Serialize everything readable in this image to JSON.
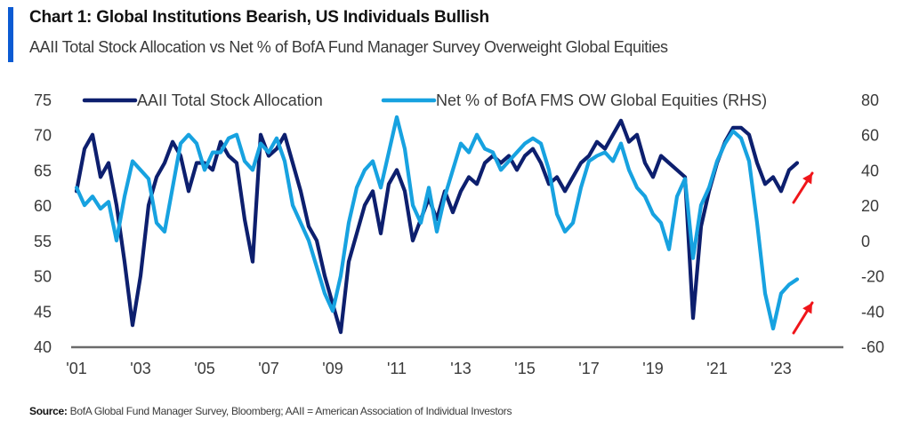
{
  "header": {
    "title": "Chart 1: Global Institutions Bearish, US Individuals Bullish",
    "subtitle": "AAII Total Stock Allocation vs Net % of BofA Fund Manager Survey Overweight Global Equities"
  },
  "footer": {
    "source_label": "Source:",
    "source_text": "BofA Global Fund Manager Survey, Bloomberg; AAII = American Association of Individual Investors"
  },
  "colors": {
    "accent": "#0b5bd3",
    "aaii": "#0d1f6e",
    "fms": "#17a2e0",
    "arrow": "#f0151a",
    "axis": "#6b6b6b"
  },
  "chart_data": {
    "type": "line",
    "title": "Chart 1: Global Institutions Bearish, US Individuals Bullish",
    "subtitle": "AAII Total Stock Allocation vs Net % of BofA Fund Manager Survey Overweight Global Equities",
    "xlabel": "",
    "ylabel": "",
    "x_ticks": [
      "'01",
      "'03",
      "'05",
      "'07",
      "'09",
      "'11",
      "'13",
      "'15",
      "'17",
      "'19",
      "'21",
      "'23"
    ],
    "x_tick_years": [
      2001,
      2003,
      2005,
      2007,
      2009,
      2011,
      2013,
      2015,
      2017,
      2019,
      2021,
      2023
    ],
    "xlim": [
      2000.95,
      2024.9
    ],
    "ylim_left": [
      40,
      75
    ],
    "y_ticks_left": [
      "75",
      "70",
      "65",
      "60",
      "55",
      "50",
      "45",
      "40"
    ],
    "y_tick_values_left": [
      75,
      70,
      65,
      60,
      55,
      50,
      45,
      40
    ],
    "ylim_right": [
      -60,
      80
    ],
    "y_ticks_right": [
      "80",
      "60",
      "40",
      "20",
      "0",
      "-20",
      "-40",
      "-60"
    ],
    "y_tick_values_right": [
      80,
      60,
      40,
      20,
      0,
      -20,
      -40,
      -60
    ],
    "grid": false,
    "legend_position": "top",
    "x": [
      2001.0,
      2001.25,
      2001.5,
      2001.75,
      2002.0,
      2002.25,
      2002.5,
      2002.75,
      2003.0,
      2003.25,
      2003.5,
      2003.75,
      2004.0,
      2004.25,
      2004.5,
      2004.75,
      2005.0,
      2005.25,
      2005.5,
      2005.75,
      2006.0,
      2006.25,
      2006.5,
      2006.75,
      2007.0,
      2007.25,
      2007.5,
      2007.75,
      2008.0,
      2008.25,
      2008.5,
      2008.75,
      2009.0,
      2009.25,
      2009.5,
      2009.75,
      2010.0,
      2010.25,
      2010.5,
      2010.75,
      2011.0,
      2011.25,
      2011.5,
      2011.75,
      2012.0,
      2012.25,
      2012.5,
      2012.75,
      2013.0,
      2013.25,
      2013.5,
      2013.75,
      2014.0,
      2014.25,
      2014.5,
      2014.75,
      2015.0,
      2015.25,
      2015.5,
      2015.75,
      2016.0,
      2016.25,
      2016.5,
      2016.75,
      2017.0,
      2017.25,
      2017.5,
      2017.75,
      2018.0,
      2018.25,
      2018.5,
      2018.75,
      2019.0,
      2019.25,
      2019.5,
      2019.75,
      2020.0,
      2020.25,
      2020.5,
      2020.75,
      2021.0,
      2021.25,
      2021.5,
      2021.75,
      2022.0,
      2022.25,
      2022.5,
      2022.75,
      2023.0,
      2023.25,
      2023.5
    ],
    "series": [
      {
        "name": "AAII Total Stock Allocation",
        "axis": "left",
        "values": [
          62,
          68,
          70,
          64,
          66,
          60,
          52,
          43,
          50,
          60,
          64,
          66,
          69,
          67,
          62,
          66,
          66,
          65,
          69,
          67,
          66,
          58,
          52,
          70,
          67,
          68,
          70,
          66,
          62,
          57,
          55,
          50,
          46,
          42,
          52,
          56,
          60,
          62,
          56,
          63,
          65,
          62,
          55,
          58,
          61,
          58,
          62,
          59,
          62,
          64,
          63,
          66,
          67,
          66,
          67,
          65,
          67,
          68,
          66,
          63,
          64,
          62,
          64,
          66,
          67,
          69,
          68,
          70,
          72,
          69,
          70,
          66,
          64,
          67,
          66,
          65,
          64,
          44,
          57,
          62,
          66,
          69,
          71,
          71,
          70,
          66,
          63,
          64,
          62,
          65,
          66
        ]
      },
      {
        "name": "Net % of BofA FMS OW Global Equities (RHS)",
        "axis": "right",
        "values": [
          30,
          20,
          25,
          18,
          22,
          0,
          25,
          45,
          40,
          35,
          10,
          5,
          30,
          55,
          60,
          55,
          40,
          50,
          50,
          58,
          60,
          45,
          40,
          55,
          50,
          58,
          45,
          20,
          10,
          0,
          -15,
          -30,
          -40,
          -20,
          10,
          30,
          40,
          45,
          30,
          50,
          70,
          52,
          20,
          10,
          30,
          5,
          25,
          40,
          55,
          50,
          60,
          52,
          50,
          40,
          45,
          50,
          55,
          58,
          55,
          40,
          15,
          5,
          10,
          30,
          45,
          48,
          50,
          45,
          55,
          40,
          30,
          25,
          15,
          10,
          -5,
          25,
          35,
          -10,
          20,
          30,
          45,
          55,
          62,
          58,
          45,
          10,
          -30,
          -50,
          -30,
          -25,
          -22
        ]
      }
    ],
    "annotations": [
      {
        "type": "arrow",
        "color": "red",
        "direction": "up-right",
        "near_series": "AAII Total Stock Allocation",
        "at_x": 2023.8
      },
      {
        "type": "arrow",
        "color": "red",
        "direction": "up-right",
        "near_series": "Net % of BofA FMS OW Global Equities (RHS)",
        "at_x": 2023.8
      }
    ]
  }
}
